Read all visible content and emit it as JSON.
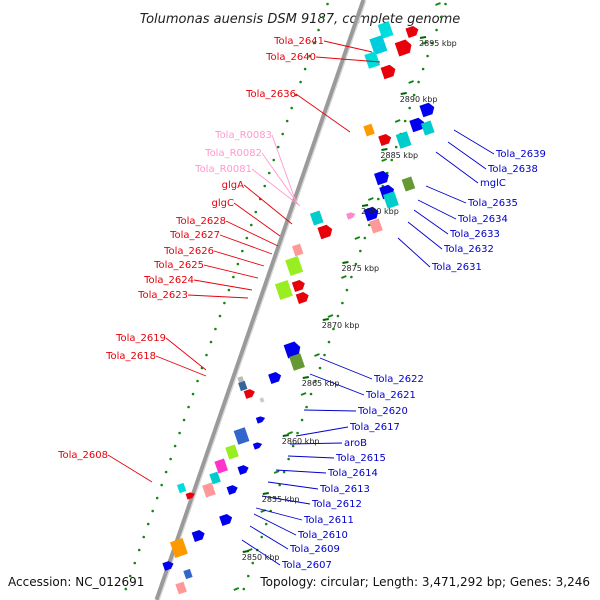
{
  "title": "Tolumonas auensis DSM 9187, complete genome",
  "footer": {
    "accession": "Accession: NC_012691",
    "topology": "Topology: circular; Length: 3,471,292 bp; Genes: 3,246"
  },
  "colors": {
    "left_label": "#e8000b",
    "right_label": "#0000cc",
    "rna_label": "#ff99cc",
    "tick": "#006600",
    "backbone": "#9a9a9a"
  },
  "ticks": [
    "2850 kbp",
    "2855 kbp",
    "2860 kbp",
    "2865 kbp",
    "2870 kbp",
    "2875 kbp",
    "2880 kbp",
    "2885 kbp",
    "2890 kbp",
    "2895 kbp"
  ],
  "left_labels": [
    "Tola_2641",
    "Tola_2640",
    "Tola_2636",
    "Tola_R0083",
    "Tola_R0082",
    "Tola_R0081",
    "glgA",
    "glgC",
    "Tola_2628",
    "Tola_2627",
    "Tola_2626",
    "Tola_2625",
    "Tola_2624",
    "Tola_2623",
    "Tola_2619",
    "Tola_2618",
    "Tola_2608"
  ],
  "right_labels": [
    "Tola_2639",
    "Tola_2638",
    "mglC",
    "Tola_2635",
    "Tola_2634",
    "Tola_2633",
    "Tola_2632",
    "Tola_2631",
    "Tola_2622",
    "Tola_2621",
    "Tola_2620",
    "Tola_2617",
    "aroB",
    "Tola_2615",
    "Tola_2614",
    "Tola_2613",
    "Tola_2612",
    "Tola_2611",
    "Tola_2610",
    "Tola_2609",
    "Tola_2607"
  ]
}
